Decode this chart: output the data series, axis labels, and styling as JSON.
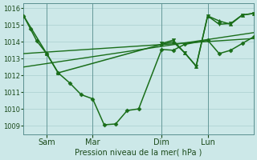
{
  "background_color": "#cce8e8",
  "grid_color": "#aacfcf",
  "line_color": "#1a6e1a",
  "marker_color": "#1a6e1a",
  "xlabel": "Pression niveau de la mer( hPa )",
  "ylim": [
    1008.5,
    1016.3
  ],
  "yticks": [
    1009,
    1010,
    1011,
    1012,
    1013,
    1014,
    1015,
    1016
  ],
  "xtick_labels": [
    "Sam",
    "Mar",
    "Dim",
    "Lun"
  ],
  "xtick_positions": [
    14,
    42,
    84,
    112
  ],
  "xlim": [
    0,
    140
  ],
  "vlines": [
    14,
    42,
    84,
    112
  ],
  "vline_color": "#5a9090",
  "vline_lw": 0.6,
  "series": [
    {
      "x": [
        0,
        4,
        8,
        14,
        21,
        28,
        35,
        42,
        49,
        56,
        63,
        70,
        84,
        91,
        98,
        112,
        119,
        126,
        133,
        140
      ],
      "y": [
        1015.55,
        1014.8,
        1014.05,
        1013.3,
        1012.15,
        1011.55,
        1010.85,
        1010.6,
        1009.05,
        1009.1,
        1009.9,
        1010.0,
        1013.55,
        1013.5,
        1013.85,
        1014.1,
        1013.3,
        1013.5,
        1013.9,
        1014.3
      ],
      "marker": "D",
      "markersize": 2.5,
      "linewidth": 1.1
    },
    {
      "x": [
        0,
        140
      ],
      "y": [
        1013.3,
        1014.2
      ],
      "marker": null,
      "linewidth": 1.0
    },
    {
      "x": [
        0,
        140
      ],
      "y": [
        1012.5,
        1014.55
      ],
      "marker": null,
      "linewidth": 1.0
    },
    {
      "x": [
        0,
        14,
        21,
        84,
        91,
        98,
        105,
        112,
        119,
        126,
        133,
        140
      ],
      "y": [
        1015.55,
        1013.3,
        1012.15,
        1013.85,
        1014.0,
        1013.35,
        1012.55,
        1015.55,
        1015.25,
        1015.05,
        1015.6,
        1015.7
      ],
      "marker": "^",
      "markersize": 3,
      "linewidth": 1.1
    },
    {
      "x": [
        84,
        91,
        98,
        105,
        112,
        119,
        126,
        133,
        140
      ],
      "y": [
        1013.9,
        1014.1,
        1013.35,
        1012.55,
        1015.55,
        1015.05,
        1015.1,
        1015.6,
        1015.7
      ],
      "marker": "v",
      "markersize": 3,
      "linewidth": 1.1
    }
  ],
  "ylabel_fontsize": 6,
  "tick_fontsize": 6,
  "xlabel_fontsize": 7,
  "tick_color": "#1a4a1a",
  "spine_color": "#5a9090"
}
